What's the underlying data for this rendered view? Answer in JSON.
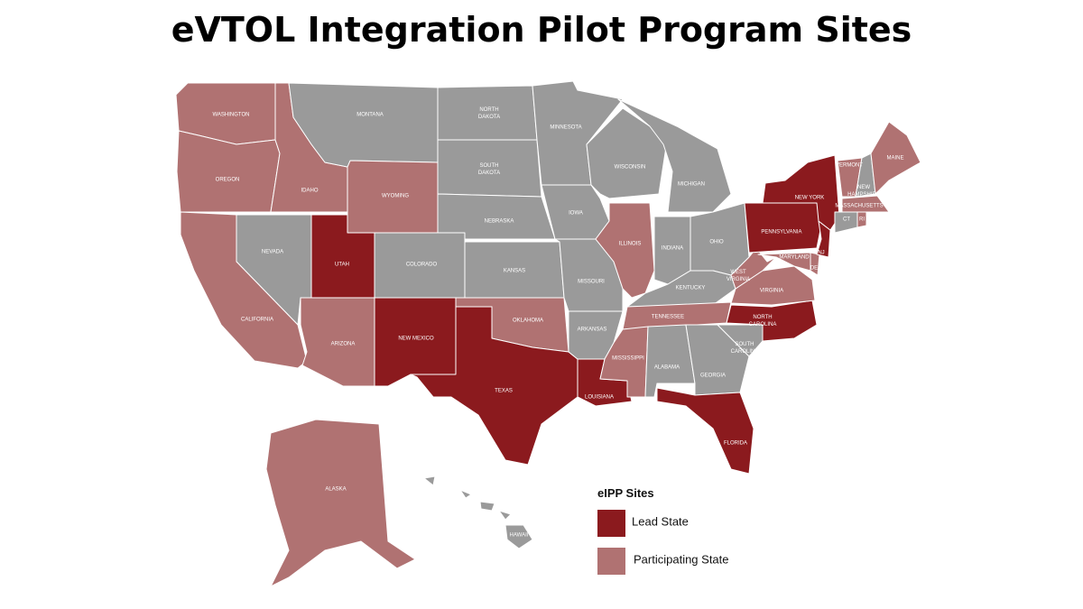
{
  "title": "eVTOL Integration Pilot Program Sites",
  "legend": {
    "title": "eIPP Sites",
    "items": [
      {
        "label": "Lead State",
        "color": "#8b1a1e"
      },
      {
        "label": "Participating State",
        "color": "#b07272"
      }
    ]
  },
  "other_color": "#9a9a9a",
  "states": [
    {
      "label": "WASHINGTON",
      "color": "#b07272"
    },
    {
      "label": "OREGON",
      "color": "#b07272"
    },
    {
      "label": "IDAHO",
      "color": "#b07272"
    },
    {
      "label": "MONTANA",
      "color": "#9a9a9a"
    },
    {
      "label": "WYOMING",
      "color": "#b07272"
    },
    {
      "label": "NEVADA",
      "color": "#9a9a9a"
    },
    {
      "label": "CALIFORNIA",
      "color": "#b07272"
    },
    {
      "label": "UTAH",
      "color": "#8b1a1e"
    },
    {
      "label": "ARIZONA",
      "color": "#b07272"
    },
    {
      "label": "COLORADO",
      "color": "#9a9a9a"
    },
    {
      "label": "NEW MEXICO",
      "color": "#8b1a1e"
    },
    {
      "label": "NORTH DAKOTA",
      "color": "#9a9a9a"
    },
    {
      "label": "SOUTH DAKOTA",
      "color": "#9a9a9a"
    },
    {
      "label": "NEBRASKA",
      "color": "#9a9a9a"
    },
    {
      "label": "KANSAS",
      "color": "#9a9a9a"
    },
    {
      "label": "OKLAHOMA",
      "color": "#b07272"
    },
    {
      "label": "TEXAS",
      "color": "#8b1a1e"
    },
    {
      "label": "MINNESOTA",
      "color": "#9a9a9a"
    },
    {
      "label": "IOWA",
      "color": "#9a9a9a"
    },
    {
      "label": "MISSOURI",
      "color": "#9a9a9a"
    },
    {
      "label": "ARKANSAS",
      "color": "#9a9a9a"
    },
    {
      "label": "LOUISIANA",
      "color": "#8b1a1e"
    },
    {
      "label": "WISCONSIN",
      "color": "#9a9a9a"
    },
    {
      "label": "MICHIGAN",
      "color": "#9a9a9a"
    },
    {
      "label": "ILLINOIS",
      "color": "#b07272"
    },
    {
      "label": "INDIANA",
      "color": "#9a9a9a"
    },
    {
      "label": "OHIO",
      "color": "#9a9a9a"
    },
    {
      "label": "KENTUCKY",
      "color": "#9a9a9a"
    },
    {
      "label": "TENNESSEE",
      "color": "#b07272"
    },
    {
      "label": "MISSISSIPPI",
      "color": "#b07272"
    },
    {
      "label": "ALABAMA",
      "color": "#9a9a9a"
    },
    {
      "label": "GEORGIA",
      "color": "#9a9a9a"
    },
    {
      "label": "FLORIDA",
      "color": "#8b1a1e"
    },
    {
      "label": "SOUTH CAROLINA",
      "color": "#9a9a9a"
    },
    {
      "label": "NORTH CAROLINA",
      "color": "#8b1a1e"
    },
    {
      "label": "VIRGINIA",
      "color": "#b07272"
    },
    {
      "label": "WEST VIRGINIA",
      "color": "#b07272"
    },
    {
      "label": "PENNSYLVANIA",
      "color": "#8b1a1e"
    },
    {
      "label": "MARYLAND",
      "color": "#b07272"
    },
    {
      "label": "DE",
      "color": "#b07272"
    },
    {
      "label": "NJ",
      "color": "#8b1a1e"
    },
    {
      "label": "NEW YORK",
      "color": "#8b1a1e"
    },
    {
      "label": "VERMONT",
      "color": "#b07272"
    },
    {
      "label": "NEW HAMPSHIRE",
      "color": "#9a9a9a"
    },
    {
      "label": "MAINE",
      "color": "#b07272"
    },
    {
      "label": "MASSACHUSETTS",
      "color": "#b07272"
    },
    {
      "label": "CT",
      "color": "#9a9a9a"
    },
    {
      "label": "RI",
      "color": "#b07272"
    },
    {
      "label": "ALASKA",
      "color": "#b07272"
    },
    {
      "label": "HAWAII",
      "color": "#9a9a9a"
    }
  ]
}
